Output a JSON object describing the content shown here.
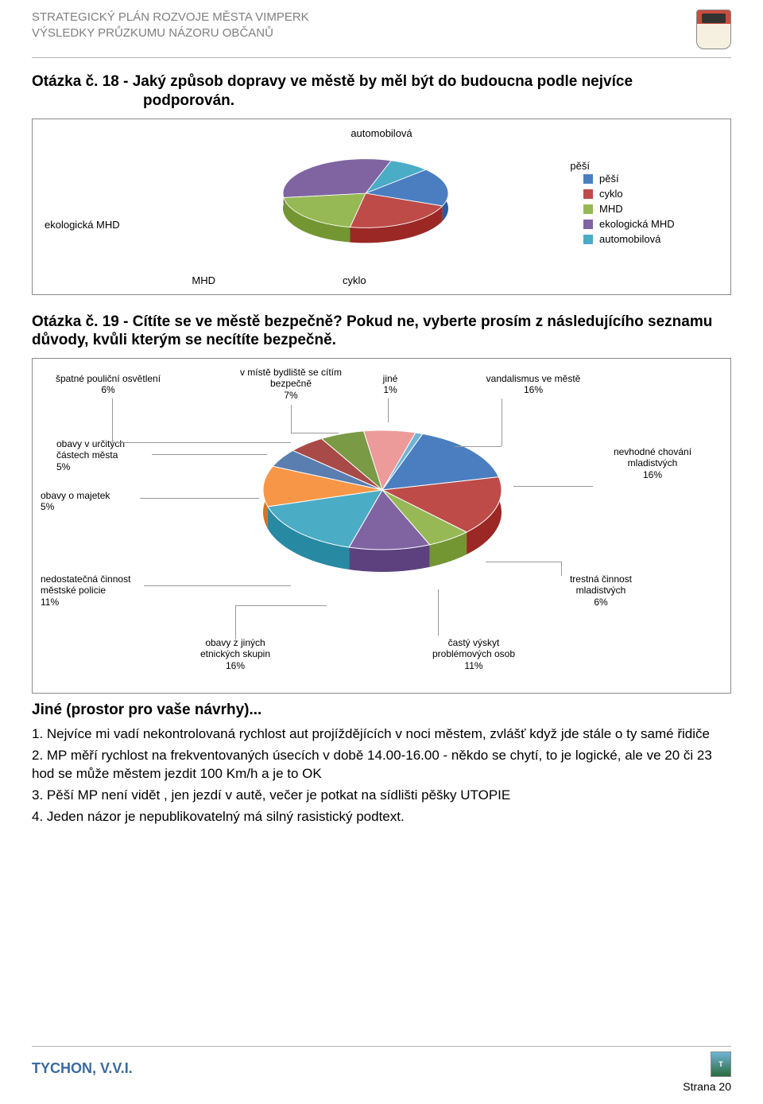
{
  "header": {
    "line1": "STRATEGICKÝ PLÁN ROZVOJE MĚSTA VIMPERK",
    "line2": "VÝSLEDKY PRŮZKUMU NÁZORU OBČANŮ"
  },
  "q18": {
    "title_main": "Otázka č. 18 - Jaký způsob dopravy ve městě by měl být do budoucna podle nejvíce",
    "title_rest": "podporován.",
    "label_top": "automobilová",
    "label_left": "ekologická MHD",
    "label_right_pesi": "pěší",
    "label_bottom_mhd": "MHD",
    "label_bottom_cyklo": "cyklo",
    "legend": [
      {
        "label": "pěší",
        "color": "#4a7ec0"
      },
      {
        "label": "cyklo",
        "color": "#be4b48"
      },
      {
        "label": "MHD",
        "color": "#97b955"
      },
      {
        "label": "ekologická MHD",
        "color": "#8064a2"
      },
      {
        "label": "automobilová",
        "color": "#4bacc6"
      }
    ],
    "chart": {
      "type": "pie-3d",
      "slices": [
        {
          "label": "pěší",
          "value": 18,
          "color": "#4a7ec0"
        },
        {
          "label": "cyklo",
          "value": 22,
          "color": "#be4b48"
        },
        {
          "label": "MHD",
          "value": 20,
          "color": "#97b955"
        },
        {
          "label": "ekologická MHD",
          "value": 32,
          "color": "#8064a2"
        },
        {
          "label": "automobilová",
          "value": 8,
          "color": "#4bacc6"
        }
      ],
      "background_color": "#ffffff",
      "border_color": "#8a8a8a",
      "label_fontsize": 13
    }
  },
  "q19": {
    "title": "Otázka č. 19 - Cítíte se ve městě bezpečně? Pokud ne, vyberte prosím z následujícího seznamu důvody, kvůli kterým se necítíte bezpečně.",
    "chart": {
      "type": "pie-3d",
      "background_color": "#ffffff",
      "border_color": "#8a8a8a",
      "label_fontsize": 12,
      "slices": [
        {
          "key": "bezpecne",
          "label": "v místě bydliště se cítím bezpečně",
          "pct": "7%",
          "value": 7,
          "color": "#ed9a9a"
        },
        {
          "key": "jine",
          "label": "jiné",
          "pct": "1%",
          "value": 1,
          "color": "#6fb5d6"
        },
        {
          "key": "vandalismus",
          "label": "vandalismus ve městě",
          "pct": "16%",
          "value": 16,
          "color": "#4a7ec0"
        },
        {
          "key": "nevhodne",
          "label": "nevhodné chování mladistvých",
          "pct": "16%",
          "value": 16,
          "color": "#be4b48"
        },
        {
          "key": "trestna",
          "label": "trestná činnost mladistvých",
          "pct": "6%",
          "value": 6,
          "color": "#97b955"
        },
        {
          "key": "vyskyt",
          "label": "častý výskyt problémových osob",
          "pct": "11%",
          "value": 11,
          "color": "#8064a2"
        },
        {
          "key": "etnicke",
          "label": "obavy z jiných etnických skupin",
          "pct": "16%",
          "value": 16,
          "color": "#4bacc6"
        },
        {
          "key": "policie",
          "label": "nedostatečná činnost městské policie",
          "pct": "11%",
          "value": 11,
          "color": "#f79646"
        },
        {
          "key": "majetek",
          "label": "obavy o majetek",
          "pct": "5%",
          "value": 5,
          "color": "#5a7eb0"
        },
        {
          "key": "casti",
          "label": "obavy v určitých částech města",
          "pct": "5%",
          "value": 5,
          "color": "#a84b48"
        },
        {
          "key": "osvetleni",
          "label": "špatné pouliční osvětlení",
          "pct": "6%",
          "value": 6,
          "color": "#7a9a45"
        }
      ]
    },
    "labels": {
      "osvetleni_l1": "špatné pouliční osvětlení",
      "osvetleni_l2": "6%",
      "bezpecne_l1": "v místě bydliště se cítím",
      "bezpecne_l2": "bezpečně",
      "bezpecne_l3": "7%",
      "jine_l1": "jiné",
      "jine_l2": "1%",
      "vandalismus_l1": "vandalismus ve městě",
      "vandalismus_l2": "16%",
      "casti_l1": "obavy v určitých",
      "casti_l2": "částech města",
      "casti_l3": "5%",
      "majetek_l1": "obavy o majetek",
      "majetek_l2": "5%",
      "nevhodne_l1": "nevhodné chování",
      "nevhodne_l2": "mladistvých",
      "nevhodne_l3": "16%",
      "policie_l1": "nedostatečná činnost",
      "policie_l2": "městské policie",
      "policie_l3": "11%",
      "trestna_l1": "trestná činnost",
      "trestna_l2": "mladistvých",
      "trestna_l3": "6%",
      "etnicke_l1": "obavy z jiných",
      "etnicke_l2": "etnických skupin",
      "etnicke_l3": "16%",
      "vyskyt_l1": "častý výskyt",
      "vyskyt_l2": "problémových osob",
      "vyskyt_l3": "11%"
    }
  },
  "navrhy": {
    "heading": "Jiné (prostor pro vaše návrhy)...",
    "items": [
      "1. Nejvíce mi vadí nekontrolovaná rychlost aut projíždějících v noci městem, zvlášť když jde stále o ty samé řidiče",
      "2. MP měří rychlost na frekventovaných úsecích v době 14.00-16.00 - někdo se chytí, to je logické, ale ve 20 či 23 hod se může městem jezdit 100 Km/h a je to OK",
      "3. Pěší MP není vidět , jen jezdí v autě,  večer je potkat na sídlišti pěšky UTOPIE",
      "4. Jeden názor je nepublikovatelný má silný rasistický podtext."
    ]
  },
  "footer": {
    "org": "TYCHON, V.V.I.",
    "page": "Strana 20",
    "logo_text": "T"
  }
}
